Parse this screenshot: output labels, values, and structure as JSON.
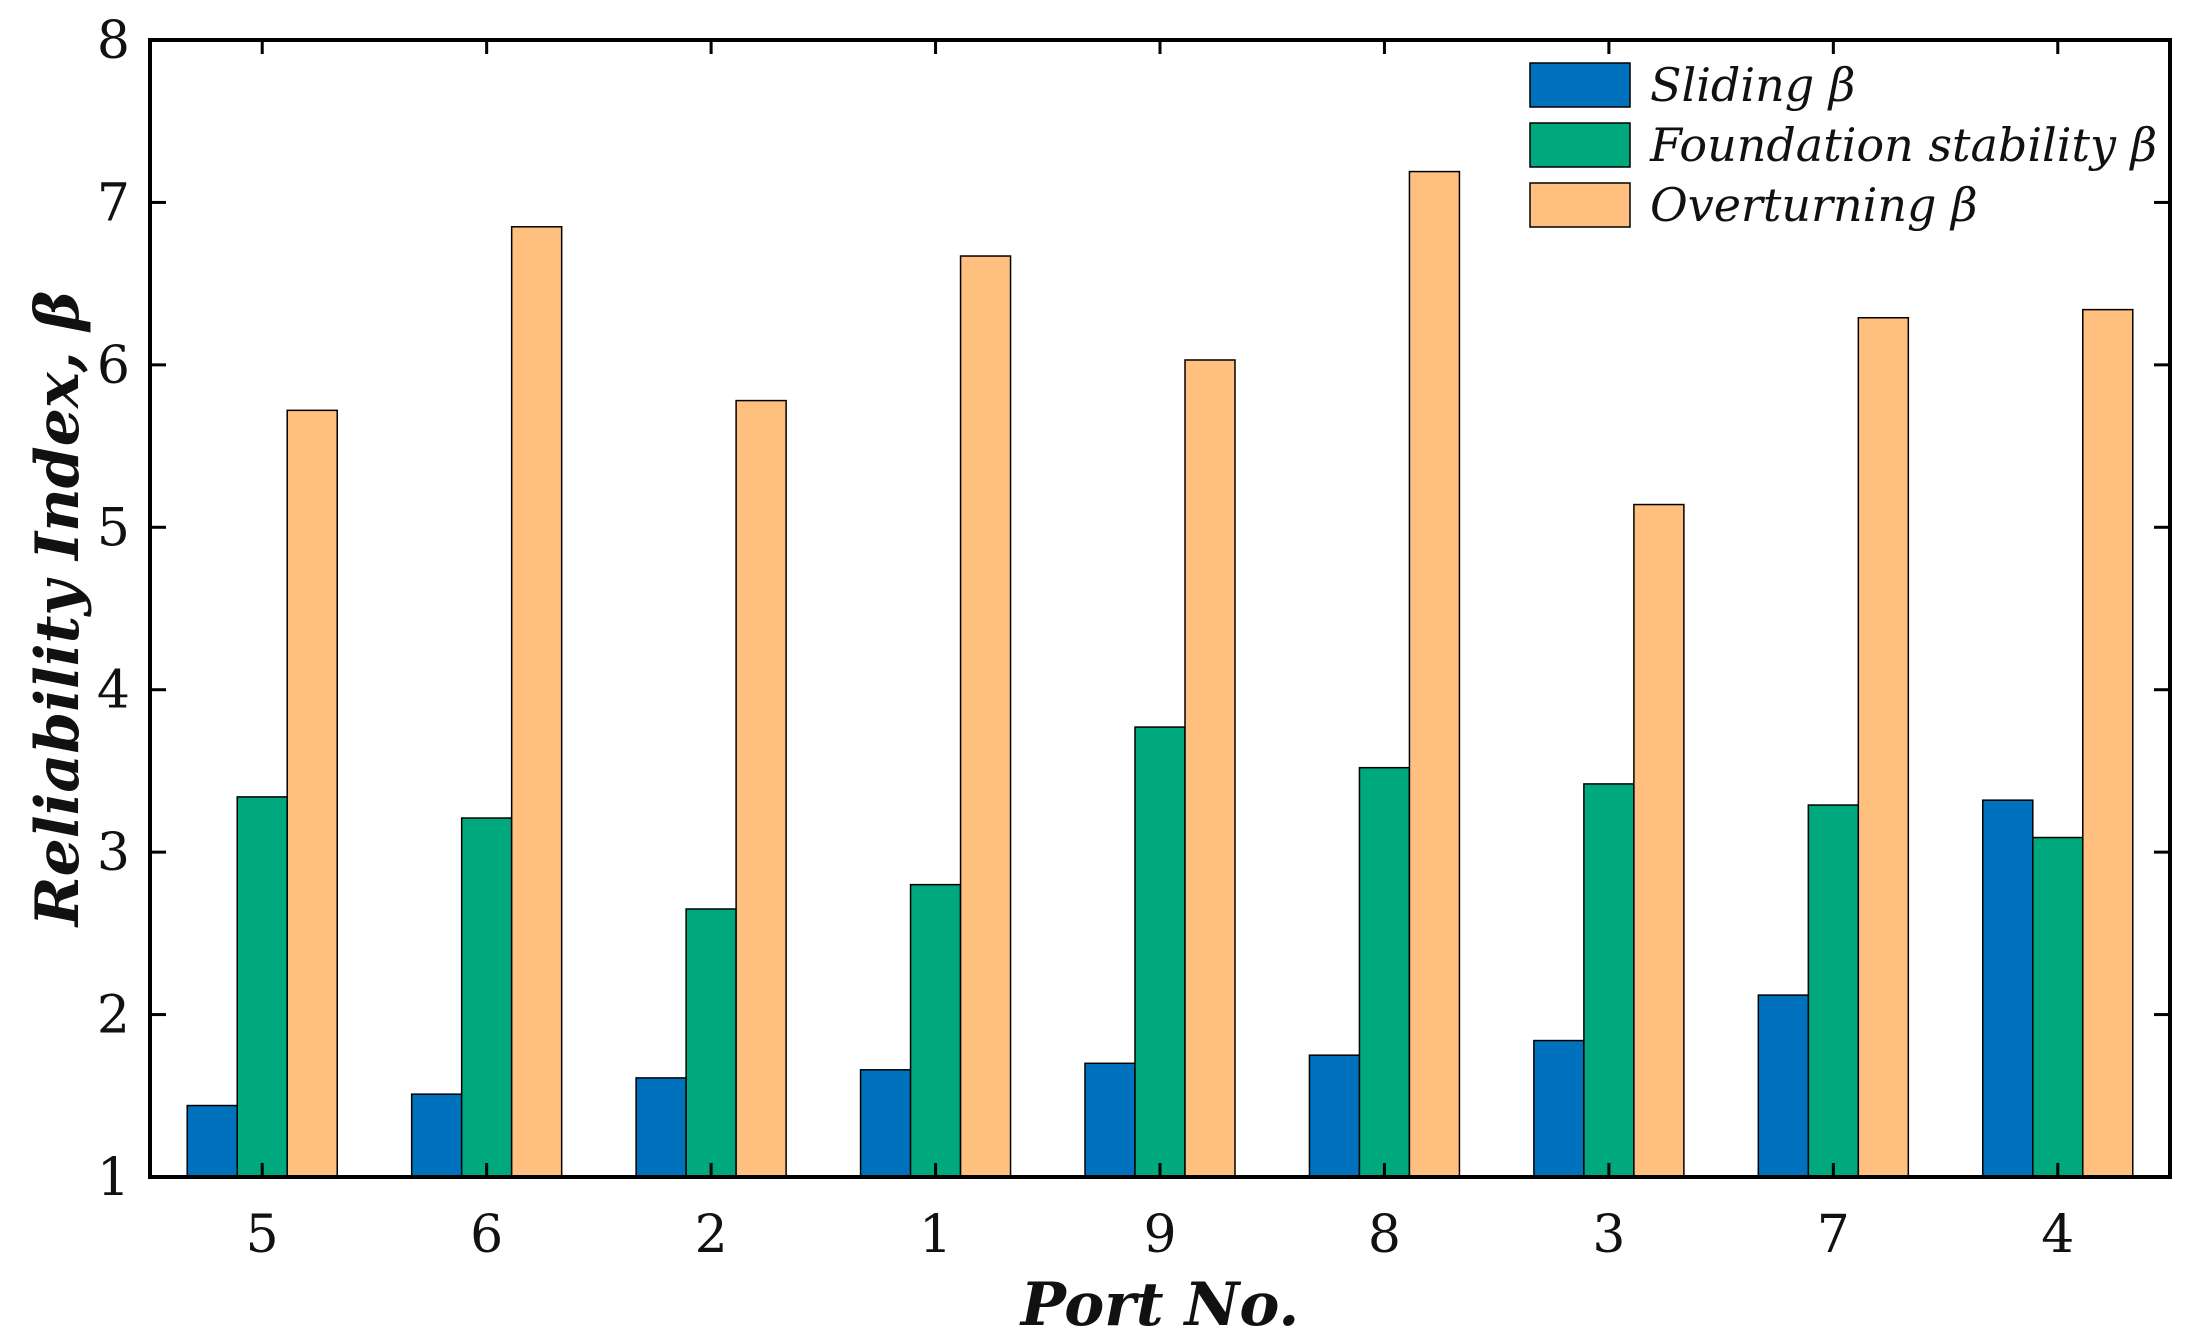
{
  "chart_data": {
    "type": "bar",
    "title": "",
    "xlabel": "Port No.",
    "ylabel": "Reliability Index, β",
    "categories": [
      "5",
      "6",
      "2",
      "1",
      "9",
      "8",
      "3",
      "7",
      "4"
    ],
    "ylim": [
      1,
      8
    ],
    "yticks": [
      "1",
      "2",
      "3",
      "4",
      "5",
      "6",
      "7",
      "8"
    ],
    "legend_position": "top-right",
    "series": [
      {
        "name": "Sliding β",
        "color": "#0072BD",
        "values": [
          1.44,
          1.51,
          1.61,
          1.66,
          1.7,
          1.75,
          1.84,
          2.12,
          3.32
        ]
      },
      {
        "name": "Foundation stability β",
        "color": "#00A87E",
        "values": [
          3.34,
          3.21,
          2.65,
          2.8,
          3.77,
          3.52,
          3.42,
          3.29,
          3.09
        ]
      },
      {
        "name": "Overturning β",
        "color": "#FFBF7F",
        "values": [
          5.72,
          6.85,
          5.78,
          6.67,
          6.03,
          7.19,
          5.14,
          6.29,
          6.34
        ]
      }
    ]
  }
}
